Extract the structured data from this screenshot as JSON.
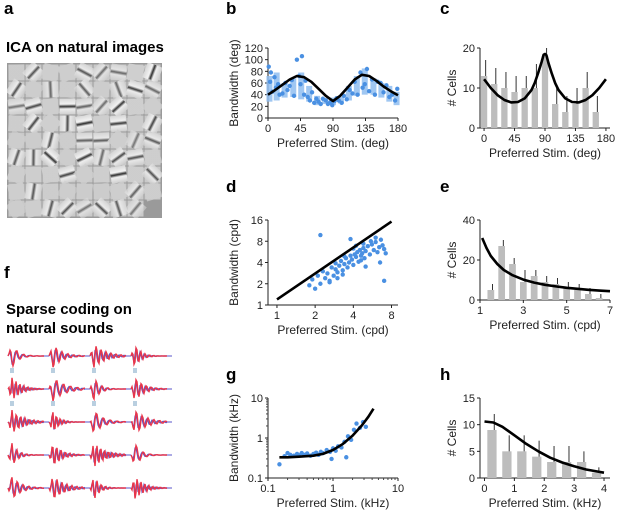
{
  "figure": {
    "headings": {
      "ica": "ICA on natural images",
      "sparse_line1": "Sparse coding on",
      "sparse_line2": "natural sounds"
    },
    "panel_letters": {
      "a": "a",
      "b": "b",
      "c": "c",
      "d": "d",
      "e": "e",
      "f": "f",
      "g": "g",
      "h": "h"
    },
    "colors": {
      "scatter": "#4a90e2",
      "scatter_band": "#8fbdf0",
      "bar": "#bdbdbd",
      "curve": "#000000",
      "waveform_red": "#e8354a",
      "waveform_blue": "#5a55c8",
      "spike_marker": "#b9cfe0"
    },
    "icons": {
      "ica_mosaic": "ica-basis-functions-mosaic",
      "sound_waveforms": "sparse-coding-sound-kernels"
    }
  },
  "chart_data": [
    {
      "id": "b",
      "type": "scatter",
      "xlabel": "Preferred Stim. (deg)",
      "ylabel": "Bandwidth (deg)",
      "xlim": [
        0,
        180
      ],
      "ylim": [
        0,
        120
      ],
      "xticks": [
        0,
        45,
        90,
        135,
        180
      ],
      "yticks": [
        0,
        20,
        40,
        60,
        80,
        100,
        120
      ],
      "xticklabels": [
        "0",
        "45",
        "90",
        "135",
        "180"
      ],
      "yticklabels": [
        "0",
        "20",
        "40",
        "60",
        "80",
        "100",
        "120"
      ],
      "bands": [
        {
          "x": 2,
          "low": 28,
          "high": 72
        },
        {
          "x": 12,
          "low": 30,
          "high": 78
        },
        {
          "x": 23,
          "low": 35,
          "high": 60
        },
        {
          "x": 35,
          "low": 36,
          "high": 68
        },
        {
          "x": 46,
          "low": 32,
          "high": 78
        },
        {
          "x": 57,
          "low": 28,
          "high": 55
        },
        {
          "x": 68,
          "low": 22,
          "high": 38
        },
        {
          "x": 79,
          "low": 24,
          "high": 34
        },
        {
          "x": 90,
          "low": 22,
          "high": 35
        },
        {
          "x": 101,
          "low": 25,
          "high": 36
        },
        {
          "x": 112,
          "low": 30,
          "high": 55
        },
        {
          "x": 123,
          "low": 38,
          "high": 72
        },
        {
          "x": 134,
          "low": 40,
          "high": 85
        },
        {
          "x": 146,
          "low": 40,
          "high": 68
        },
        {
          "x": 157,
          "low": 35,
          "high": 60
        },
        {
          "x": 168,
          "low": 28,
          "high": 55
        },
        {
          "x": 178,
          "low": 22,
          "high": 45
        }
      ],
      "points_x": [
        1,
        3,
        4,
        6,
        9,
        11,
        14,
        16,
        20,
        24,
        27,
        30,
        33,
        36,
        40,
        43,
        45,
        47,
        50,
        52,
        55,
        58,
        61,
        64,
        67,
        70,
        73,
        76,
        80,
        83,
        86,
        89,
        92,
        95,
        98,
        102,
        105,
        109,
        113,
        117,
        120,
        124,
        128,
        131,
        134,
        137,
        140,
        144,
        148,
        152,
        156,
        160,
        164,
        168,
        172,
        176,
        179
      ],
      "points_y": [
        88,
        62,
        78,
        45,
        70,
        52,
        58,
        40,
        42,
        60,
        48,
        55,
        65,
        38,
        100,
        72,
        58,
        106,
        40,
        64,
        36,
        30,
        44,
        26,
        33,
        28,
        24,
        33,
        30,
        24,
        27,
        22,
        29,
        34,
        30,
        26,
        38,
        32,
        48,
        42,
        62,
        40,
        78,
        52,
        58,
        84,
        46,
        66,
        40,
        62,
        60,
        44,
        56,
        36,
        40,
        30,
        50
      ],
      "curve": {
        "x": [
          0,
          10,
          20,
          30,
          40,
          50,
          60,
          70,
          80,
          90,
          100,
          110,
          120,
          130,
          140,
          150,
          160,
          170,
          180
        ],
        "y": [
          40,
          48,
          57,
          66,
          72,
          70,
          62,
          50,
          38,
          29,
          38,
          52,
          66,
          74,
          72,
          64,
          54,
          46,
          39
        ]
      }
    },
    {
      "id": "c",
      "type": "bar",
      "xlabel": "Preferred Stim. (deg)",
      "ylabel": "# Cells",
      "xlim": [
        -6,
        186
      ],
      "ylim": [
        0,
        20
      ],
      "xticks": [
        0,
        45,
        90,
        135,
        180
      ],
      "yticks": [
        0,
        10,
        20
      ],
      "xticklabels": [
        "0",
        "45",
        "90",
        "135",
        "180"
      ],
      "yticklabels": [
        "0",
        "10",
        "20"
      ],
      "x": [
        0,
        15,
        30,
        45,
        60,
        75,
        90,
        105,
        120,
        135,
        150,
        165
      ],
      "values": [
        13,
        11,
        10,
        9,
        10,
        10,
        18,
        6,
        4,
        6,
        10,
        4
      ],
      "errors": [
        4,
        4,
        4,
        4,
        3,
        6,
        2,
        4,
        4,
        4,
        4,
        4
      ],
      "curve": {
        "x": [
          0,
          10,
          20,
          30,
          40,
          50,
          60,
          70,
          75,
          80,
          85,
          88,
          90,
          92,
          95,
          100,
          105,
          110,
          120,
          130,
          140,
          150,
          160,
          170,
          180
        ],
        "y": [
          12.2,
          10,
          8.2,
          7,
          6.4,
          6.5,
          7.4,
          9.5,
          11.3,
          13.8,
          16.5,
          18.3,
          18.5,
          18.2,
          16.3,
          13.6,
          11.2,
          9.5,
          7.4,
          6.5,
          6.4,
          7,
          8.2,
          10,
          12.2
        ]
      }
    },
    {
      "id": "d",
      "type": "scatter",
      "scale": "log",
      "xlabel": "Preferred Stim. (cpd)",
      "ylabel": "Bandwidth (cpd)",
      "xlim": [
        0.85,
        9
      ],
      "ylim": [
        1,
        16
      ],
      "xticks": [
        1,
        2,
        4,
        8
      ],
      "yticks": [
        1,
        2,
        4,
        8,
        16
      ],
      "xticklabels": [
        "1",
        "2",
        "4",
        "8"
      ],
      "yticklabels": [
        "1",
        "2",
        "4",
        "8",
        "16"
      ],
      "points_x": [
        1.8,
        1.9,
        2.0,
        2.1,
        2.2,
        2.3,
        2.4,
        2.5,
        2.6,
        2.7,
        2.8,
        2.9,
        3.0,
        3.1,
        3.2,
        3.3,
        3.4,
        3.5,
        3.6,
        3.7,
        3.8,
        3.9,
        4.0,
        4.1,
        4.2,
        4.3,
        4.4,
        4.5,
        4.6,
        4.7,
        4.8,
        4.9,
        5.0,
        5.2,
        5.4,
        5.6,
        5.8,
        6.0,
        6.2,
        6.4,
        6.6,
        6.8,
        7.0,
        7.2,
        2.2,
        2.6,
        3.0,
        3.4,
        3.8,
        4.2,
        4.6,
        5.0,
        5.5,
        6.0,
        6.5,
        7.0,
        2.9,
        3.3,
        4.0,
        4.8
      ],
      "points_y": [
        1.9,
        2.3,
        1.7,
        2.6,
        2.0,
        3.0,
        2.4,
        2.8,
        2.2,
        3.4,
        2.6,
        3.2,
        2.9,
        3.6,
        4.2,
        3.1,
        3.8,
        4.6,
        3.4,
        4.0,
        5.0,
        4.4,
        3.7,
        5.2,
        4.8,
        5.6,
        4.1,
        6.0,
        5.0,
        5.4,
        6.4,
        4.6,
        5.8,
        6.8,
        5.2,
        7.2,
        6.0,
        7.8,
        5.6,
        6.6,
        8.4,
        7.0,
        6.2,
        5.4,
        9.8,
        2.1,
        2.4,
        4.9,
        8.6,
        6.9,
        4.3,
        3.5,
        8.0,
        9.0,
        4.0,
        2.2,
        3.9,
        2.7,
        6.3,
        7.4
      ],
      "line": {
        "x": [
          1,
          8
        ],
        "y": [
          1.2,
          15.2
        ]
      }
    },
    {
      "id": "e",
      "type": "bar",
      "xlabel": "Preferred Stim. (cpd)",
      "ylabel": "# Cells",
      "xlim": [
        1,
        7
      ],
      "ylim": [
        0,
        40
      ],
      "xticks": [
        1,
        3,
        5,
        7
      ],
      "yticks": [
        0,
        20,
        40
      ],
      "xticklabels": [
        "1",
        "3",
        "5",
        "7"
      ],
      "yticklabels": [
        "0",
        "20",
        "40"
      ],
      "x": [
        1.5,
        2.0,
        2.5,
        3.0,
        3.5,
        4.0,
        4.5,
        5.0,
        5.5,
        6.0,
        6.5
      ],
      "values": [
        5,
        27,
        18,
        9,
        12,
        9,
        8,
        6,
        5,
        3,
        1
      ],
      "errors": [
        3,
        3,
        3,
        6,
        3,
        3,
        3,
        3,
        3,
        3,
        2
      ],
      "curve": {
        "x": [
          1.1,
          1.3,
          1.5,
          1.8,
          2.1,
          2.5,
          3.0,
          3.5,
          4.0,
          4.5,
          5.0,
          5.5,
          6.0,
          6.5,
          7.0
        ],
        "y": [
          31,
          26,
          22,
          18,
          15,
          12.4,
          10.2,
          8.7,
          7.6,
          6.8,
          6.1,
          5.6,
          5.1,
          4.7,
          4.4
        ]
      }
    },
    {
      "id": "g",
      "type": "scatter",
      "scale": "log",
      "xlabel": "Preferred Stim. (kHz)",
      "ylabel": "Bandwidth (kHz)",
      "xlim": [
        0.1,
        10
      ],
      "ylim": [
        0.1,
        10
      ],
      "xticks": [
        0.1,
        1,
        10
      ],
      "yticks": [
        0.1,
        1,
        10
      ],
      "xticklabels": [
        "0.1",
        "1",
        "10"
      ],
      "yticklabels": [
        "0.1",
        "1",
        "10"
      ],
      "points_x": [
        0.15,
        0.18,
        0.2,
        0.22,
        0.25,
        0.28,
        0.3,
        0.33,
        0.36,
        0.4,
        0.45,
        0.5,
        0.55,
        0.6,
        0.65,
        0.7,
        0.8,
        0.9,
        1.0,
        1.1,
        1.2,
        1.35,
        1.5,
        1.7,
        1.9,
        2.1,
        2.3,
        2.6,
        2.9,
        3.2,
        0.95,
        1.6
      ],
      "points_y": [
        0.22,
        0.35,
        0.42,
        0.38,
        0.36,
        0.4,
        0.37,
        0.42,
        0.38,
        0.41,
        0.36,
        0.4,
        0.43,
        0.38,
        0.45,
        0.42,
        0.5,
        0.45,
        0.55,
        0.48,
        0.62,
        0.58,
        0.8,
        1.1,
        0.9,
        1.6,
        2.3,
        1.8,
        2.5,
        1.9,
        0.3,
        0.33
      ],
      "curve": {
        "x": [
          0.15,
          0.2,
          0.3,
          0.5,
          0.7,
          1.0,
          1.4,
          2.0,
          2.8,
          3.5,
          4.2
        ],
        "y": [
          0.33,
          0.33,
          0.34,
          0.36,
          0.4,
          0.5,
          0.7,
          1.15,
          2.1,
          3.4,
          5.4
        ]
      }
    },
    {
      "id": "h",
      "type": "bar",
      "xlabel": "Preferred Stim. (kHz)",
      "ylabel": "# Cells",
      "xlim": [
        -0.15,
        4.2
      ],
      "ylim": [
        0,
        15
      ],
      "xticks": [
        0,
        1,
        2,
        3,
        4
      ],
      "yticks": [
        0,
        5,
        10,
        15
      ],
      "xticklabels": [
        "0",
        "1",
        "2",
        "3",
        "4"
      ],
      "yticklabels": [
        "0",
        "5",
        "10",
        "15"
      ],
      "x": [
        0.25,
        0.75,
        1.25,
        1.75,
        2.25,
        2.75,
        3.25,
        3.75
      ],
      "values": [
        9,
        5,
        5,
        4,
        3,
        3,
        3,
        1
      ],
      "errors": [
        3,
        3,
        3,
        3,
        3,
        3,
        2,
        1
      ],
      "curve": {
        "x": [
          0,
          0.3,
          0.6,
          1.0,
          1.4,
          1.8,
          2.2,
          2.6,
          3.0,
          3.4,
          3.8,
          4.0
        ],
        "y": [
          10.6,
          10.4,
          9.6,
          8.0,
          6.4,
          5.0,
          3.8,
          2.9,
          2.2,
          1.6,
          1.2,
          1.0
        ]
      }
    }
  ]
}
